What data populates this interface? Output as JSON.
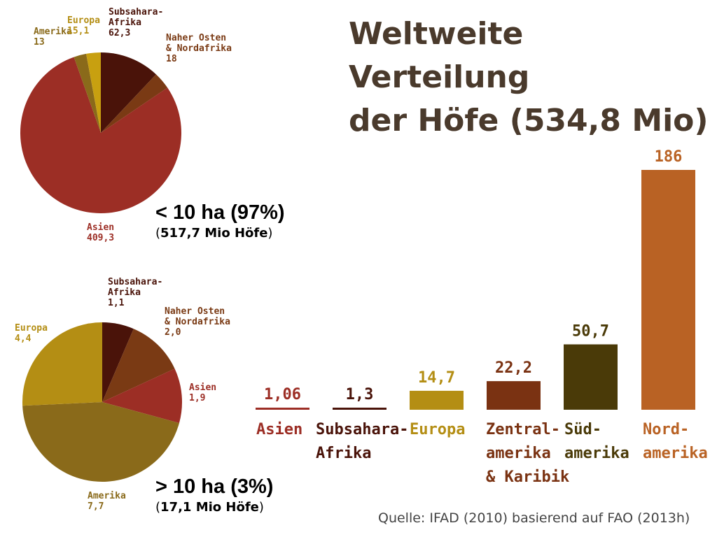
{
  "title": [
    "Weltweite Verteilung",
    "der Höfe (534,8 Mio)"
  ],
  "source": "Quelle: IFAD (2010) basierend auf FAO (2013h)",
  "small_farms": {
    "caption_main": "< 10 ha (97%)",
    "caption_sub_open": "(",
    "caption_sub_value": "517,7 Mio Höfe",
    "caption_sub_close": ")"
  },
  "large_farms": {
    "caption_main": "> 10 ha (3%)",
    "caption_sub_open": "(",
    "caption_sub_value": "17,1 Mio Höfe",
    "caption_sub_close": ")"
  },
  "colors": {
    "title": "#4a3a2c",
    "asien": "#9c2e25",
    "subsahara": "#4a1309",
    "europa": "#b48e14",
    "zentralamerika": "#7a3212",
    "suedamerika": "#4a3a08",
    "nordamerika": "#b96224",
    "amerika_pie": "#8a6a1a",
    "naher_osten": "#7a3a14"
  },
  "chart_data": [
    {
      "type": "pie",
      "caption": "< 10 ha (97%)",
      "slices": [
        {
          "name": [
            "Subsahara-",
            "Afrika"
          ],
          "value": 62.3,
          "label": "62,3",
          "color": "#4a1309",
          "text_color": "#4a1309"
        },
        {
          "name": [
            "Naher Osten",
            "& Nordafrika"
          ],
          "value": 18,
          "label": "18",
          "color": "#7a3a14",
          "text_color": "#7a3a14"
        },
        {
          "name": [
            "Asien"
          ],
          "value": 409.3,
          "label": "409,3",
          "color": "#9c2e25",
          "text_color": "#9c2e25"
        },
        {
          "name": [
            "Amerika"
          ],
          "value": 13,
          "label": "13",
          "color": "#8a6a1a",
          "text_color": "#8a6a1a"
        },
        {
          "name": [
            "Europa"
          ],
          "value": 15.1,
          "label": "15,1",
          "color": "#c8a010",
          "text_color": "#b48e14"
        }
      ]
    },
    {
      "type": "pie",
      "caption": "> 10 ha (3%)",
      "slices": [
        {
          "name": [
            "Subsahara-",
            "Afrika"
          ],
          "value": 1.1,
          "label": "1,1",
          "color": "#4a1309",
          "text_color": "#4a1309"
        },
        {
          "name": [
            "Naher Osten",
            "& Nordafrika"
          ],
          "value": 2.0,
          "label": "2,0",
          "color": "#7a3a14",
          "text_color": "#7a3a14"
        },
        {
          "name": [
            "Asien"
          ],
          "value": 1.9,
          "label": "1,9",
          "color": "#9c2e25",
          "text_color": "#9c2e25"
        },
        {
          "name": [
            "Amerika"
          ],
          "value": 7.7,
          "label": "7,7",
          "color": "#8a6a1a",
          "text_color": "#8a6a1a"
        },
        {
          "name": [
            "Europa"
          ],
          "value": 4.4,
          "label": "4,4",
          "color": "#b48e14",
          "text_color": "#b48e14"
        }
      ]
    },
    {
      "type": "bar",
      "categories": [
        [
          "Asien"
        ],
        [
          "Subsahara-",
          "Afrika"
        ],
        [
          "Europa"
        ],
        [
          "Zentral-",
          "amerika",
          "& Karibik"
        ],
        [
          "Süd-",
          "amerika"
        ],
        [
          "Nord-",
          "amerika"
        ]
      ],
      "values": [
        1.06,
        1.3,
        14.7,
        22.2,
        50.7,
        186
      ],
      "value_labels": [
        "1,06",
        "1,3",
        "14,7",
        "22,2",
        "50,7",
        "186"
      ],
      "colors": [
        "#9c2e25",
        "#4a1309",
        "#b48e14",
        "#7a3212",
        "#4a3a08",
        "#b96224"
      ],
      "label_colors": [
        "#9c2e25",
        "#4a1309",
        "#b48e14",
        "#7a3212",
        "#4a3a08",
        "#b96224"
      ],
      "xlabel": "",
      "ylabel": "",
      "grid": false,
      "legend": "none"
    }
  ]
}
